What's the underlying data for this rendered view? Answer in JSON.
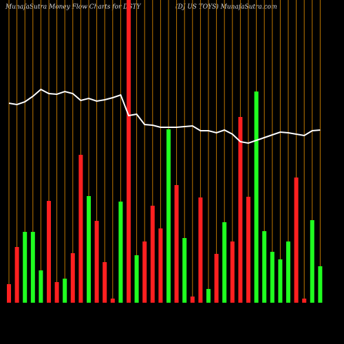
{
  "chart_data": {
    "type": "bar",
    "title": "MunafaSutra  Money Flow  Charts for DSTY",
    "subtitle": "(DJ US TOYS) MunafaSutra.com",
    "values": [
      27,
      81,
      103,
      103,
      47,
      148,
      30,
      35,
      72,
      215,
      155,
      119,
      59,
      6,
      147,
      440,
      69,
      89,
      141,
      108,
      252,
      171,
      94,
      9,
      153,
      20,
      71,
      117,
      89,
      270,
      154,
      307,
      104,
      74,
      63,
      89,
      182,
      6,
      120,
      53
    ],
    "colors": [
      "#ff2020",
      "#ff2020",
      "#20ff20",
      "#20ff20",
      "#20ff20",
      "#ff2020",
      "#ff2020",
      "#20ff20",
      "#ff2020",
      "#ff2020",
      "#20ff20",
      "#ff2020",
      "#ff2020",
      "#ff2020",
      "#20ff20",
      "#ff2020",
      "#20ff20",
      "#ff2020",
      "#ff2020",
      "#ff2020",
      "#20ff20",
      "#ff2020",
      "#20ff20",
      "#ff2020",
      "#ff2020",
      "#20ff20",
      "#ff2020",
      "#20ff20",
      "#ff2020",
      "#ff2020",
      "#ff2020",
      "#20ff20",
      "#20ff20",
      "#20ff20",
      "#20ff20",
      "#20ff20",
      "#ff2020",
      "#ff2020",
      "#20ff20",
      "#20ff20"
    ],
    "line": {
      "color": "#ffffff",
      "values": [
        290,
        288,
        292,
        300,
        310,
        304,
        303,
        307,
        304,
        294,
        297,
        293,
        295,
        298,
        302,
        272,
        274,
        259,
        258,
        255,
        255,
        255,
        256,
        257,
        250,
        250,
        247,
        251,
        245,
        234,
        232,
        236,
        240,
        244,
        248,
        247,
        245,
        243,
        250,
        251
      ]
    },
    "ylim": [
      0,
      440
    ],
    "guide_color": "#c07800"
  }
}
